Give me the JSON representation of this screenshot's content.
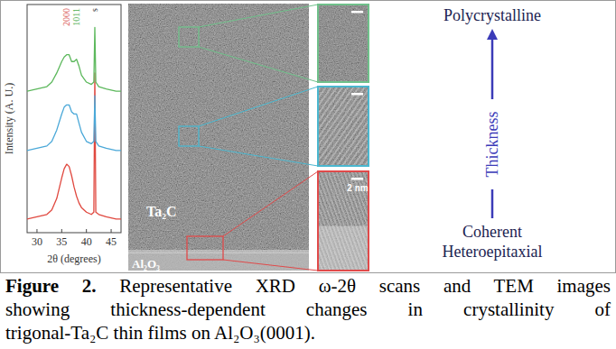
{
  "chart_data": {
    "type": "line",
    "x": [
      28,
      30,
      32,
      33,
      34,
      35,
      35.5,
      36,
      36.5,
      37,
      37.5,
      38,
      38.5,
      39,
      40,
      41,
      41.5,
      41.7,
      41.9,
      42.5,
      44,
      46,
      47
    ],
    "series": [
      {
        "color": "#e0483f",
        "values": [
          0.6,
          0.7,
          0.8,
          1.0,
          1.5,
          2.4,
          2.8,
          3.0,
          2.9,
          2.5,
          2.0,
          1.6,
          1.3,
          1.1,
          0.9,
          0.8,
          0.9,
          7.0,
          0.9,
          0.8,
          0.7,
          0.6,
          0.6
        ]
      },
      {
        "color": "#4aa8d8",
        "values": [
          3.6,
          3.7,
          3.8,
          4.0,
          4.5,
          5.2,
          5.5,
          5.6,
          5.6,
          5.3,
          5.2,
          5.2,
          4.8,
          4.4,
          4.0,
          3.9,
          4.0,
          6.0,
          4.0,
          3.8,
          3.7,
          3.6,
          3.6
        ]
      },
      {
        "color": "#5cb85c",
        "values": [
          6.2,
          6.3,
          6.4,
          6.6,
          7.0,
          7.5,
          7.7,
          7.8,
          7.8,
          7.5,
          7.5,
          7.6,
          7.3,
          6.9,
          6.6,
          6.5,
          6.6,
          9.0,
          6.6,
          6.4,
          6.3,
          6.2,
          6.2
        ]
      }
    ],
    "xlim": [
      28,
      47
    ],
    "xticks": [
      30,
      35,
      40,
      45
    ],
    "ylim": [
      0,
      10
    ],
    "tick_labels": "x",
    "x_label": "2θ (degrees)",
    "y_label": "Intensity (A. U.)",
    "annotations": [
      {
        "text": "2000",
        "x": 36,
        "color": "#d9534f"
      },
      {
        "text": "1011",
        "x": 38,
        "color": "#4cae4c"
      },
      {
        "text": "s",
        "x": 41.7,
        "color": "#333333"
      }
    ]
  },
  "tem": {
    "film_label": "Ta₂C",
    "substrate_label": "Al₂O₃",
    "scale_bar": "2 nm"
  },
  "thickness_axis": {
    "top": "Polycrystalline",
    "axis": "Thickness",
    "bottom": [
      "Coherent",
      "Heteroepitaxial"
    ]
  },
  "caption": {
    "label": "Figure 2.",
    "lines": [
      "Representative XRD ω-2θ scans and TEM images",
      "showing thickness-dependent changes in crystallinity of",
      "trigonal-Ta₂C thin films on Al₂O₃(0001)."
    ]
  }
}
